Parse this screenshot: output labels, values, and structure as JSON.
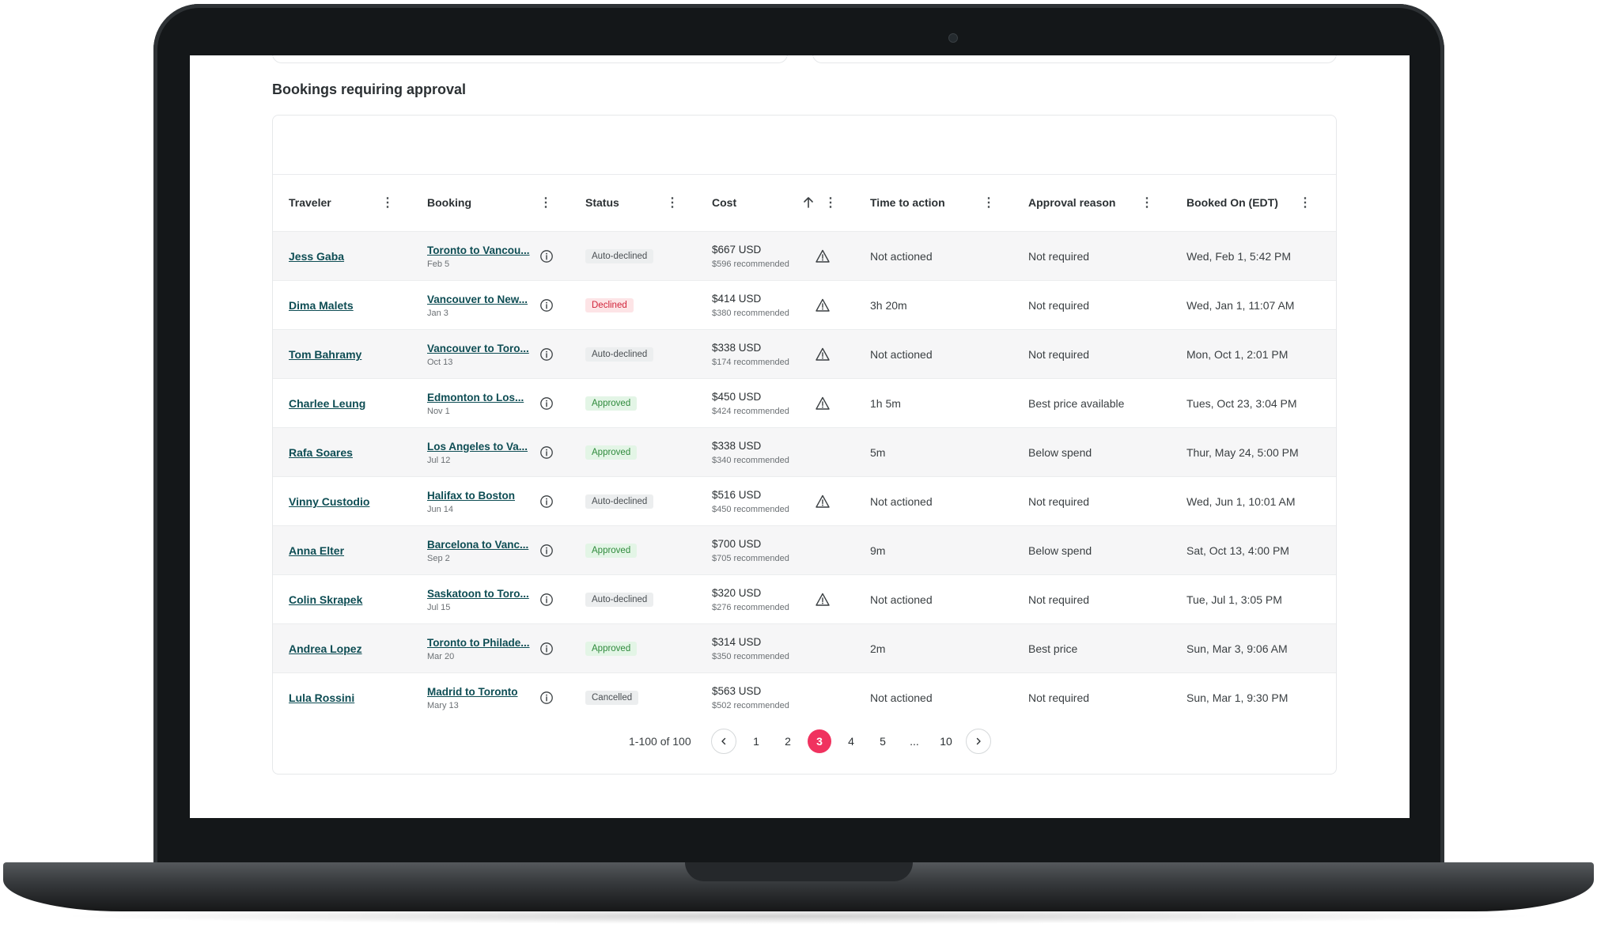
{
  "section_title": "Bookings requiring approval",
  "columns": [
    "Traveler",
    "Booking",
    "Status",
    "Cost",
    "Time to action",
    "Approval reason",
    "Booked On (EDT)"
  ],
  "status_colors": {
    "Auto-declined": {
      "bg": "#eceeef",
      "fg": "#4a4f53"
    },
    "Declined": {
      "bg": "#fde4e6",
      "fg": "#d1243a"
    },
    "Approved": {
      "bg": "#e3f5e6",
      "fg": "#2f8a3c"
    },
    "Cancelled": {
      "bg": "#eceeef",
      "fg": "#4a4f53"
    }
  },
  "rows": [
    {
      "traveler": "Jess Gaba",
      "booking": "Toronto to Vancou...",
      "date": "Feb 5",
      "status": "Auto-declined",
      "cost": "$667 USD",
      "recommended": "$596 recommended",
      "warning": true,
      "time": "Not actioned",
      "reason": "Not required",
      "booked": "Wed, Feb 1, 5:42 PM"
    },
    {
      "traveler": "Dima Malets",
      "booking": "Vancouver to New...",
      "date": "Jan 3",
      "status": "Declined",
      "cost": "$414 USD",
      "recommended": "$380 recommended",
      "warning": true,
      "time": "3h 20m",
      "reason": "Not required",
      "booked": "Wed, Jan 1, 11:07 AM"
    },
    {
      "traveler": "Tom Bahramy",
      "booking": "Vancouver to Toro...",
      "date": "Oct 13",
      "status": "Auto-declined",
      "cost": "$338 USD",
      "recommended": "$174 recommended",
      "warning": true,
      "time": "Not actioned",
      "reason": "Not required",
      "booked": "Mon, Oct 1, 2:01 PM"
    },
    {
      "traveler": "Charlee Leung",
      "booking": "Edmonton to Los...",
      "date": "Nov 1",
      "status": "Approved",
      "cost": "$450 USD",
      "recommended": "$424 recommended",
      "warning": true,
      "time": "1h 5m",
      "reason": "Best price available",
      "booked": "Tues, Oct 23, 3:04 PM"
    },
    {
      "traveler": "Rafa Soares",
      "booking": "Los Angeles to Va...",
      "date": "Jul 12",
      "status": "Approved",
      "cost": "$338 USD",
      "recommended": "$340 recommended",
      "warning": false,
      "time": "5m",
      "reason": "Below spend",
      "booked": "Thur, May 24, 5:00 PM"
    },
    {
      "traveler": "Vinny Custodio",
      "booking": "Halifax to Boston",
      "date": "Jun 14",
      "status": "Auto-declined",
      "cost": "$516 USD",
      "recommended": "$450 recommended",
      "warning": true,
      "time": "Not actioned",
      "reason": "Not required",
      "booked": "Wed, Jun 1, 10:01 AM"
    },
    {
      "traveler": "Anna Elter",
      "booking": "Barcelona to Vanc...",
      "date": "Sep 2",
      "status": "Approved",
      "cost": "$700 USD",
      "recommended": "$705 recommended",
      "warning": false,
      "time": "9m",
      "reason": "Below spend",
      "booked": "Sat, Oct 13, 4:00 PM"
    },
    {
      "traveler": "Colin Skrapek",
      "booking": "Saskatoon to Toro...",
      "date": "Jul 15",
      "status": "Auto-declined",
      "cost": "$320 USD",
      "recommended": "$276 recommended",
      "warning": true,
      "time": "Not actioned",
      "reason": "Not required",
      "booked": "Tue, Jul 1, 3:05 PM"
    },
    {
      "traveler": "Andrea Lopez",
      "booking": "Toronto to Philade...",
      "date": "Mar 20",
      "status": "Approved",
      "cost": "$314 USD",
      "recommended": "$350 recommended",
      "warning": false,
      "time": "2m",
      "reason": "Best price",
      "booked": "Sun, Mar 3, 9:06 AM"
    },
    {
      "traveler": "Lula Rossini",
      "booking": "Madrid to Toronto",
      "date": "Mary 13",
      "status": "Cancelled",
      "cost": "$563 USD",
      "recommended": "$502 recommended",
      "warning": false,
      "time": "Not actioned",
      "reason": "Not required",
      "booked": "Sun, Mar 1, 9:30 PM"
    }
  ],
  "pagination": {
    "range": "1-100 of 100",
    "pages": [
      "1",
      "2",
      "3",
      "4",
      "5",
      "...",
      "10"
    ],
    "current": "3"
  },
  "accent_color": "#f0325f"
}
